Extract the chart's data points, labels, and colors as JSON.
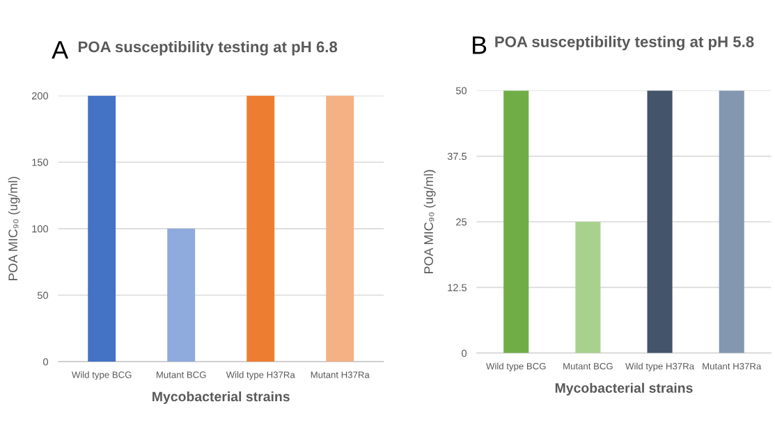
{
  "chart_data": [
    {
      "type": "bar",
      "title": "POA susceptibility testing at pH 6.8",
      "xlabel": "Mycobacterial strains",
      "ylabel": "POA MIC₉₀ (ug/ml)",
      "annotations": [
        "A"
      ],
      "categories": [
        "Wild type BCG",
        "Mutant BCG",
        "Wild type H37Ra",
        "Mutant H37Ra"
      ],
      "values": [
        200,
        100,
        200,
        200
      ],
      "colors": [
        "#4472c4",
        "#8faadc",
        "#ed7d31",
        "#f4b183"
      ],
      "ylim": [
        0,
        200
      ],
      "yticks": [
        0,
        50,
        100,
        150,
        200
      ],
      "grid": "y",
      "legend": false
    },
    {
      "type": "bar",
      "title": "POA susceptibility testing at pH 5.8",
      "xlabel": "Mycobacterial strains",
      "ylabel": "POA MIC₉₀ (ug/ml)",
      "annotations": [
        "B"
      ],
      "categories": [
        "Wild type BCG",
        "Mutant BCG",
        "Wild type H37Ra",
        "Mutant H37Ra"
      ],
      "values": [
        50,
        25,
        50,
        50
      ],
      "colors": [
        "#70ad47",
        "#a9d18e",
        "#44546a",
        "#8497b0"
      ],
      "ylim": [
        0,
        50
      ],
      "yticks": [
        0,
        12.5,
        25,
        37.5,
        50
      ],
      "grid": "y",
      "legend": false
    }
  ]
}
